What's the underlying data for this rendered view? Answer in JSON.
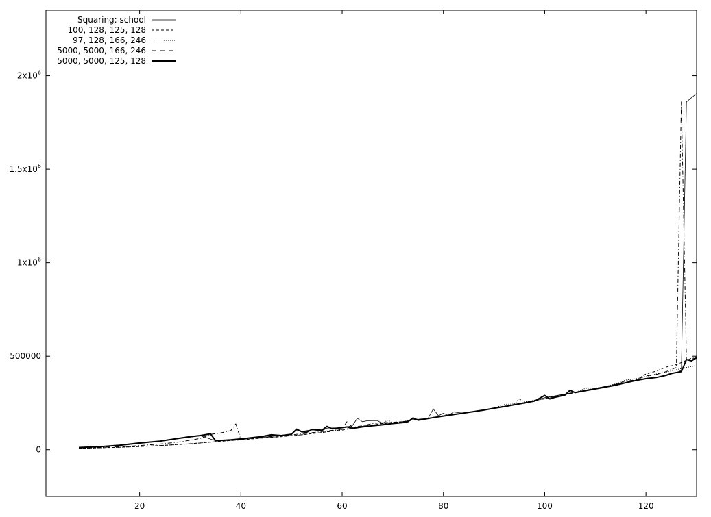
{
  "chart_data": {
    "type": "line",
    "title": "",
    "xlabel": "",
    "ylabel": "",
    "xlim": [
      1.5,
      130
    ],
    "ylim": [
      -250000,
      2350000
    ],
    "grid": false,
    "legend_position": "top-left",
    "x_ticks": [
      {
        "value": 20,
        "label": "20"
      },
      {
        "value": 40,
        "label": "40"
      },
      {
        "value": 60,
        "label": "60"
      },
      {
        "value": 80,
        "label": "80"
      },
      {
        "value": 100,
        "label": "100"
      },
      {
        "value": 120,
        "label": "120"
      }
    ],
    "y_ticks": [
      {
        "value": 0,
        "base": "0",
        "sup": ""
      },
      {
        "value": 500000,
        "base": "500000",
        "sup": ""
      },
      {
        "value": 1000000,
        "base": "1x10",
        "sup": "6"
      },
      {
        "value": 1500000,
        "base": "1.5x10",
        "sup": "6"
      },
      {
        "value": 2000000,
        "base": "2x10",
        "sup": "6"
      }
    ],
    "series": [
      {
        "name": "Squaring: school",
        "style": "solid-thin",
        "points": [
          [
            8,
            10000
          ],
          [
            12,
            15000
          ],
          [
            16,
            22000
          ],
          [
            20,
            33000
          ],
          [
            24,
            45000
          ],
          [
            28,
            60000
          ],
          [
            32,
            75000
          ],
          [
            35,
            48000
          ],
          [
            38,
            53000
          ],
          [
            40,
            58000
          ],
          [
            44,
            66000
          ],
          [
            48,
            76000
          ],
          [
            50,
            84000
          ],
          [
            51,
            105000
          ],
          [
            52,
            98000
          ],
          [
            54,
            106000
          ],
          [
            56,
            101000
          ],
          [
            57,
            116000
          ],
          [
            60,
            118000
          ],
          [
            62,
            128000
          ],
          [
            63,
            168000
          ],
          [
            64,
            150000
          ],
          [
            65,
            155000
          ],
          [
            67,
            156000
          ],
          [
            68,
            138000
          ],
          [
            70,
            140000
          ],
          [
            72,
            145000
          ],
          [
            74,
            160000
          ],
          [
            76,
            165000
          ],
          [
            77,
            170000
          ],
          [
            78,
            218000
          ],
          [
            79,
            182000
          ],
          [
            80,
            195000
          ],
          [
            81,
            182000
          ],
          [
            82,
            202000
          ],
          [
            84,
            195000
          ],
          [
            86,
            202000
          ],
          [
            88,
            210000
          ],
          [
            90,
            222000
          ],
          [
            92,
            230000
          ],
          [
            94,
            240000
          ],
          [
            96,
            250000
          ],
          [
            98,
            262000
          ],
          [
            100,
            278000
          ],
          [
            102,
            288000
          ],
          [
            104,
            298000
          ],
          [
            106,
            308000
          ],
          [
            108,
            318000
          ],
          [
            110,
            328000
          ],
          [
            112,
            338000
          ],
          [
            114,
            345000
          ],
          [
            116,
            358000
          ],
          [
            118,
            370000
          ],
          [
            120,
            382000
          ],
          [
            122,
            388000
          ],
          [
            124,
            398000
          ],
          [
            126,
            412000
          ],
          [
            127,
            425000
          ],
          [
            128,
            1860000
          ],
          [
            130,
            1905000
          ]
        ]
      },
      {
        "name": "100, 128, 125, 128",
        "style": "dashed",
        "points": [
          [
            8,
            7000
          ],
          [
            12,
            10000
          ],
          [
            16,
            13000
          ],
          [
            20,
            17000
          ],
          [
            24,
            22000
          ],
          [
            28,
            28000
          ],
          [
            32,
            36000
          ],
          [
            36,
            45000
          ],
          [
            40,
            53000
          ],
          [
            44,
            62000
          ],
          [
            48,
            70000
          ],
          [
            52,
            80000
          ],
          [
            56,
            92000
          ],
          [
            60,
            105000
          ],
          [
            62,
            115000
          ],
          [
            64,
            125000
          ],
          [
            66,
            132000
          ],
          [
            68,
            140000
          ],
          [
            70,
            147000
          ],
          [
            72,
            150000
          ],
          [
            74,
            158000
          ],
          [
            76,
            165000
          ],
          [
            78,
            172000
          ],
          [
            80,
            180000
          ],
          [
            82,
            188000
          ],
          [
            84,
            195000
          ],
          [
            86,
            203000
          ],
          [
            88,
            212000
          ],
          [
            90,
            222000
          ],
          [
            92,
            232000
          ],
          [
            94,
            242000
          ],
          [
            96,
            252000
          ],
          [
            98,
            262000
          ],
          [
            100,
            273000
          ],
          [
            102,
            285000
          ],
          [
            104,
            296000
          ],
          [
            106,
            307000
          ],
          [
            108,
            318000
          ],
          [
            110,
            328000
          ],
          [
            112,
            338000
          ],
          [
            114,
            350000
          ],
          [
            116,
            360000
          ],
          [
            118,
            372000
          ],
          [
            120,
            405000
          ],
          [
            122,
            420000
          ],
          [
            124,
            442000
          ],
          [
            126,
            455000
          ],
          [
            128,
            478000
          ],
          [
            130,
            500000
          ]
        ]
      },
      {
        "name": "97, 128, 166, 246",
        "style": "dotted",
        "points": [
          [
            8,
            7000
          ],
          [
            12,
            10000
          ],
          [
            16,
            13000
          ],
          [
            20,
            17000
          ],
          [
            24,
            22000
          ],
          [
            28,
            28000
          ],
          [
            32,
            36000
          ],
          [
            36,
            45000
          ],
          [
            40,
            53000
          ],
          [
            44,
            62000
          ],
          [
            48,
            70000
          ],
          [
            52,
            80000
          ],
          [
            56,
            92000
          ],
          [
            60,
            108000
          ],
          [
            62,
            118000
          ],
          [
            64,
            125000
          ],
          [
            66,
            135000
          ],
          [
            68,
            142000
          ],
          [
            69,
            158000
          ],
          [
            70,
            145000
          ],
          [
            72,
            150000
          ],
          [
            74,
            160000
          ],
          [
            76,
            166000
          ],
          [
            78,
            172000
          ],
          [
            80,
            185000
          ],
          [
            82,
            190000
          ],
          [
            84,
            196000
          ],
          [
            86,
            204000
          ],
          [
            88,
            212000
          ],
          [
            90,
            222000
          ],
          [
            92,
            242000
          ],
          [
            94,
            245000
          ],
          [
            95,
            272000
          ],
          [
            96,
            255000
          ],
          [
            98,
            265000
          ],
          [
            100,
            272000
          ],
          [
            102,
            285000
          ],
          [
            104,
            295000
          ],
          [
            106,
            306000
          ],
          [
            108,
            328000
          ],
          [
            110,
            330000
          ],
          [
            112,
            338000
          ],
          [
            114,
            352000
          ],
          [
            116,
            372000
          ],
          [
            118,
            380000
          ],
          [
            120,
            390000
          ],
          [
            122,
            405000
          ],
          [
            124,
            415000
          ],
          [
            126,
            428000
          ],
          [
            128,
            440000
          ],
          [
            130,
            450000
          ]
        ]
      },
      {
        "name": "5000, 5000, 166, 246",
        "style": "dash-dot",
        "points": [
          [
            8,
            8000
          ],
          [
            12,
            12000
          ],
          [
            16,
            16000
          ],
          [
            20,
            22000
          ],
          [
            24,
            30000
          ],
          [
            28,
            42000
          ],
          [
            32,
            60000
          ],
          [
            34,
            82000
          ],
          [
            36,
            90000
          ],
          [
            38,
            102000
          ],
          [
            39,
            138000
          ],
          [
            40,
            55000
          ],
          [
            44,
            65000
          ],
          [
            48,
            75000
          ],
          [
            52,
            85000
          ],
          [
            56,
            97000
          ],
          [
            60,
            110000
          ],
          [
            61,
            152000
          ],
          [
            62,
            120000
          ],
          [
            64,
            128000
          ],
          [
            66,
            140000
          ],
          [
            68,
            145000
          ],
          [
            70,
            145000
          ],
          [
            72,
            150000
          ],
          [
            74,
            160000
          ],
          [
            76,
            165000
          ],
          [
            78,
            172000
          ],
          [
            80,
            182000
          ],
          [
            82,
            190000
          ],
          [
            84,
            196000
          ],
          [
            86,
            204000
          ],
          [
            88,
            212000
          ],
          [
            90,
            222000
          ],
          [
            92,
            234000
          ],
          [
            94,
            242000
          ],
          [
            96,
            252000
          ],
          [
            98,
            262000
          ],
          [
            100,
            272000
          ],
          [
            102,
            285000
          ],
          [
            104,
            295000
          ],
          [
            106,
            305000
          ],
          [
            108,
            318000
          ],
          [
            110,
            328000
          ],
          [
            112,
            338000
          ],
          [
            114,
            350000
          ],
          [
            116,
            368000
          ],
          [
            118,
            372000
          ],
          [
            120,
            395000
          ],
          [
            122,
            402000
          ],
          [
            124,
            418000
          ],
          [
            126,
            440000
          ],
          [
            127,
            1860000
          ],
          [
            128,
            480000
          ],
          [
            130,
            490000
          ]
        ]
      },
      {
        "name": "5000, 5000, 125, 128",
        "style": "solid-thick",
        "points": [
          [
            8,
            12000
          ],
          [
            12,
            16000
          ],
          [
            16,
            24000
          ],
          [
            20,
            36000
          ],
          [
            24,
            46000
          ],
          [
            28,
            62000
          ],
          [
            30,
            70000
          ],
          [
            32,
            76000
          ],
          [
            34,
            85000
          ],
          [
            35,
            48000
          ],
          [
            38,
            53000
          ],
          [
            40,
            58000
          ],
          [
            42,
            64000
          ],
          [
            44,
            70000
          ],
          [
            46,
            80000
          ],
          [
            48,
            76000
          ],
          [
            50,
            83000
          ],
          [
            51,
            110000
          ],
          [
            52,
            96000
          ],
          [
            53,
            93000
          ],
          [
            54,
            108000
          ],
          [
            56,
            104000
          ],
          [
            57,
            125000
          ],
          [
            58,
            112000
          ],
          [
            60,
            118000
          ],
          [
            61,
            122000
          ],
          [
            62,
            114000
          ],
          [
            64,
            122000
          ],
          [
            66,
            128000
          ],
          [
            68,
            133000
          ],
          [
            70,
            140000
          ],
          [
            72,
            145000
          ],
          [
            73,
            150000
          ],
          [
            74,
            170000
          ],
          [
            75,
            158000
          ],
          [
            76,
            162000
          ],
          [
            78,
            172000
          ],
          [
            80,
            180000
          ],
          [
            82,
            188000
          ],
          [
            84,
            196000
          ],
          [
            86,
            204000
          ],
          [
            88,
            212000
          ],
          [
            90,
            222000
          ],
          [
            92,
            230000
          ],
          [
            94,
            240000
          ],
          [
            96,
            250000
          ],
          [
            98,
            260000
          ],
          [
            100,
            290000
          ],
          [
            101,
            272000
          ],
          [
            102,
            280000
          ],
          [
            104,
            292000
          ],
          [
            105,
            318000
          ],
          [
            106,
            305000
          ],
          [
            108,
            315000
          ],
          [
            110,
            325000
          ],
          [
            112,
            335000
          ],
          [
            114,
            345000
          ],
          [
            116,
            358000
          ],
          [
            118,
            370000
          ],
          [
            120,
            380000
          ],
          [
            122,
            386000
          ],
          [
            124,
            398000
          ],
          [
            125,
            408000
          ],
          [
            127,
            418000
          ],
          [
            128,
            482000
          ],
          [
            129,
            475000
          ],
          [
            130,
            492000
          ]
        ]
      }
    ]
  }
}
